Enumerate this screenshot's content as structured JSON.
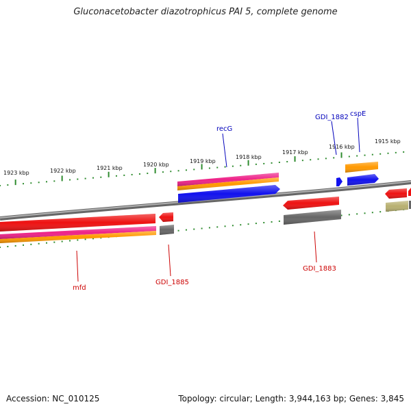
{
  "title": "Gluconacetobacter diazotrophicus PAI 5, complete genome",
  "accession": "Accession: NC_010125",
  "topology": "Topology: circular; Length: 3,944,163 bp; Genes: 3,845",
  "colors": {
    "backbone": "#8a8a8a",
    "tick": "#2e8b2e",
    "label_forward": "#0000bb",
    "label_reverse": "#cc0000",
    "red": "#ee1111",
    "blue": "#1111ee",
    "magenta": "#ee2288",
    "orange": "#ff9900",
    "gray": "#666666",
    "khaki": "#b8b070"
  },
  "scale_labels": [
    "1915 kbp",
    "1916 kbp",
    "1917 kbp",
    "1918 kbp",
    "1919 kbp",
    "1920 kbp",
    "1921 kbp",
    "1922 kbp",
    "1923 kbp"
  ],
  "gene_labels": {
    "recG": "recG",
    "GDI_1882": "GDI_1882",
    "cspE": "cspE",
    "mfd": "mfd",
    "GDI_1885": "GDI_1885",
    "GDI_1883": "GDI_1883"
  }
}
